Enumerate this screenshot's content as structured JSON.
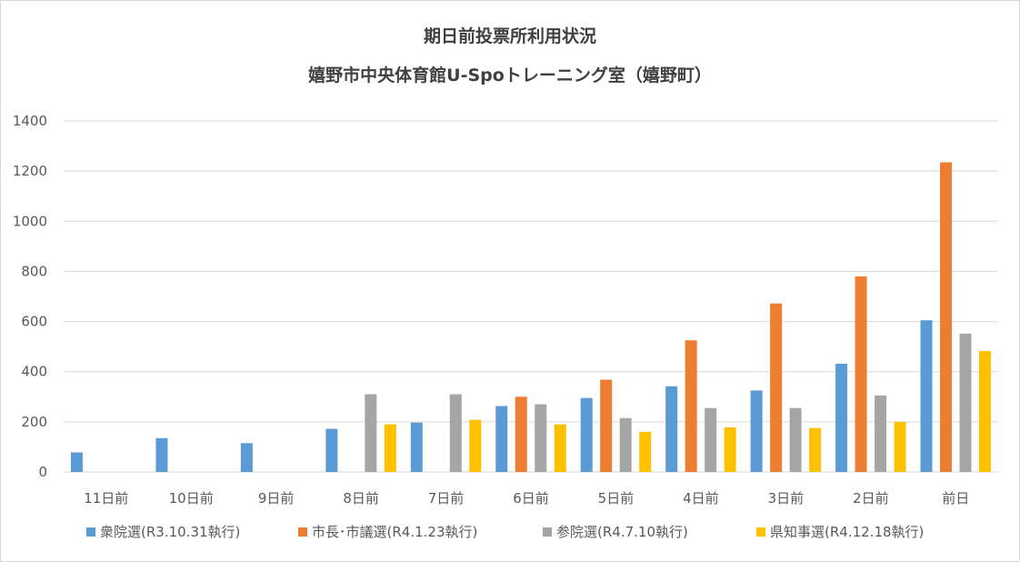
{
  "chart_data": {
    "type": "bar",
    "title": "期日前投票所利用状況",
    "subtitle": "嬉野市中央体育館U-Spoトレーニング室（嬉野町）",
    "categories": [
      "11日前",
      "10日前",
      "9日前",
      "8日前",
      "7日前",
      "6日前",
      "5日前",
      "4日前",
      "3日前",
      "2日前",
      "前日"
    ],
    "ylim": [
      0,
      1400
    ],
    "yticks": [
      "0",
      "200",
      "400",
      "600",
      "800",
      "1000",
      "1200",
      "1400"
    ],
    "grid": true,
    "legend_position": "bottom",
    "series": [
      {
        "name": "衆院選(R3.10.31執行)",
        "color": "#5b9bd5",
        "values": [
          78,
          135,
          115,
          172,
          197,
          263,
          295,
          342,
          325,
          432,
          605
        ]
      },
      {
        "name": "市長･市議選(R4.1.23執行)",
        "color": "#ed7d31",
        "values": [
          null,
          null,
          null,
          null,
          null,
          300,
          368,
          525,
          672,
          780,
          1235
        ]
      },
      {
        "name": "参院選(R4.7.10執行)",
        "color": "#a5a5a5",
        "values": [
          null,
          null,
          null,
          310,
          310,
          270,
          215,
          255,
          255,
          305,
          552
        ]
      },
      {
        "name": "県知事選(R4.12.18執行)",
        "color": "#ffc000",
        "values": [
          null,
          null,
          null,
          190,
          208,
          190,
          160,
          178,
          175,
          200,
          482
        ]
      }
    ]
  }
}
